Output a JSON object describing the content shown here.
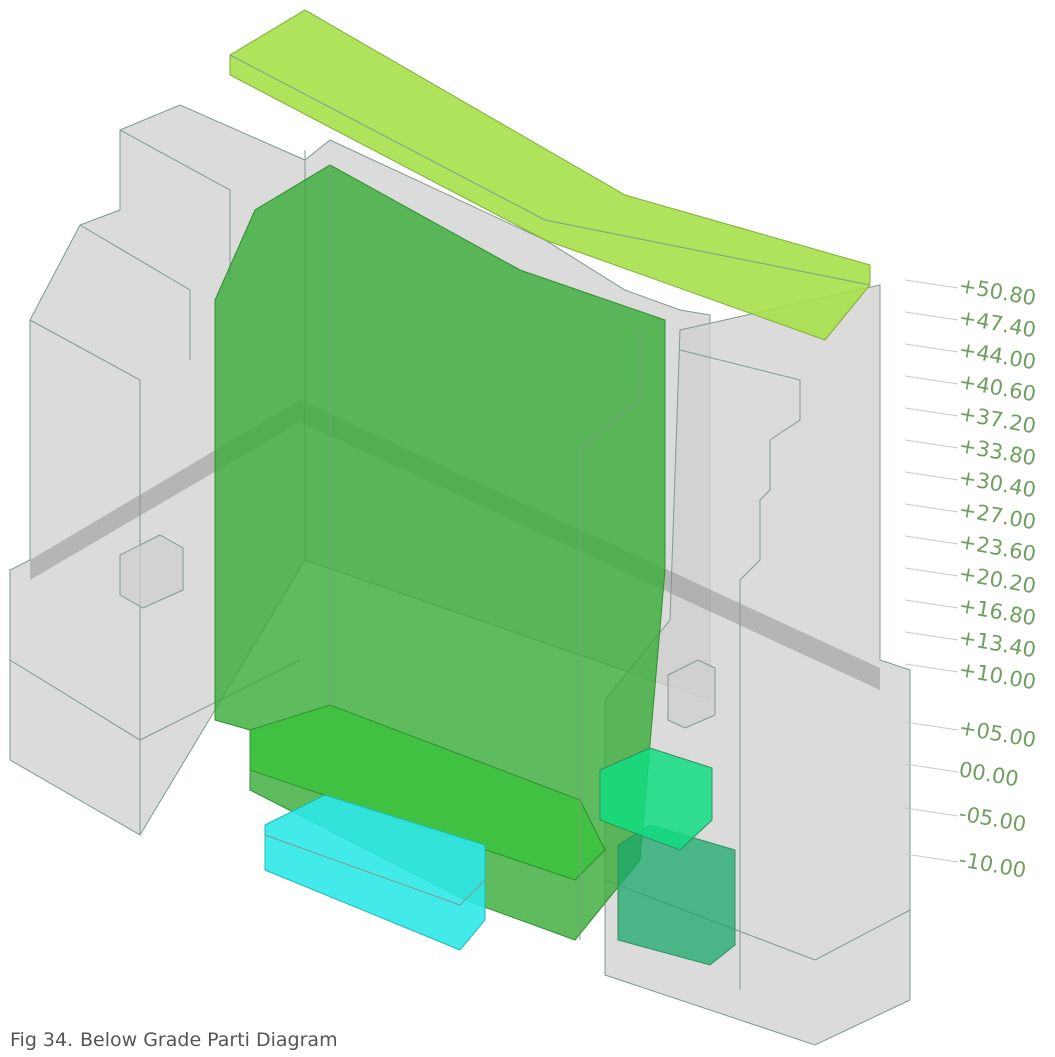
{
  "levels": [
    "+50.80",
    "+47.40",
    "+44.00",
    "+40.60",
    "+37.20",
    "+33.80",
    "+30.40",
    "+27.00",
    "+23.60",
    "+20.20",
    "+16.80",
    "+13.40",
    "+10.00",
    "+05.00",
    "00.00",
    "-05.00",
    "-10.00"
  ],
  "caption": {
    "figure": "Fig 34.",
    "title": "Below Grade Parti Diagram"
  }
}
